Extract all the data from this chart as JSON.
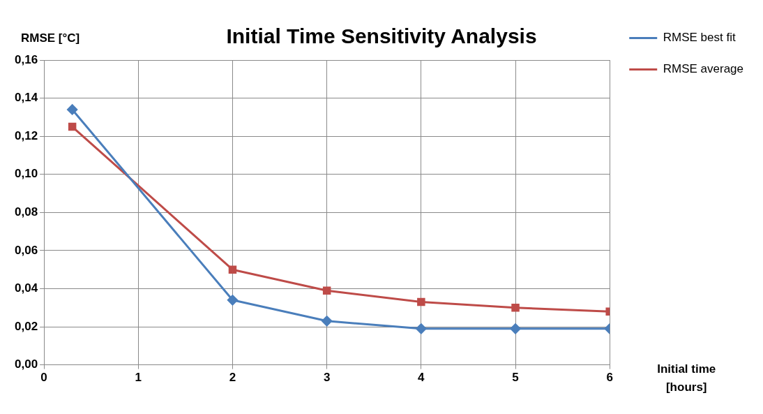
{
  "chart_data": {
    "type": "line",
    "title": "Initial Time Sensitivity Analysis",
    "xlabel": "Initial time [hours]",
    "ylabel": "RMSE [°C]",
    "x": [
      0.3,
      2,
      3,
      4,
      5,
      6
    ],
    "series": [
      {
        "name": "RMSE best fit",
        "color": "#4a7ebb",
        "marker": "diamond",
        "values": [
          0.134,
          0.034,
          0.023,
          0.019,
          0.019,
          0.019
        ]
      },
      {
        "name": "RMSE average",
        "color": "#be4b48",
        "marker": "square",
        "values": [
          0.125,
          0.05,
          0.039,
          0.033,
          0.03,
          0.028
        ]
      }
    ],
    "xlim": [
      0,
      6
    ],
    "xticks": [
      0,
      1,
      2,
      3,
      4,
      5,
      6
    ],
    "ylim": [
      0,
      0.16
    ],
    "yticks": [
      {
        "value": 0,
        "label": "0,00"
      },
      {
        "value": 0.02,
        "label": "0,02"
      },
      {
        "value": 0.04,
        "label": "0,04"
      },
      {
        "value": 0.06,
        "label": "0,06"
      },
      {
        "value": 0.08,
        "label": "0,08"
      },
      {
        "value": 0.1,
        "label": "0,10"
      },
      {
        "value": 0.12,
        "label": "0,12"
      },
      {
        "value": 0.14,
        "label": "0,14"
      },
      {
        "value": 0.16,
        "label": "0,16"
      }
    ],
    "grid": true,
    "legend": "right",
    "line_style": "solid"
  }
}
